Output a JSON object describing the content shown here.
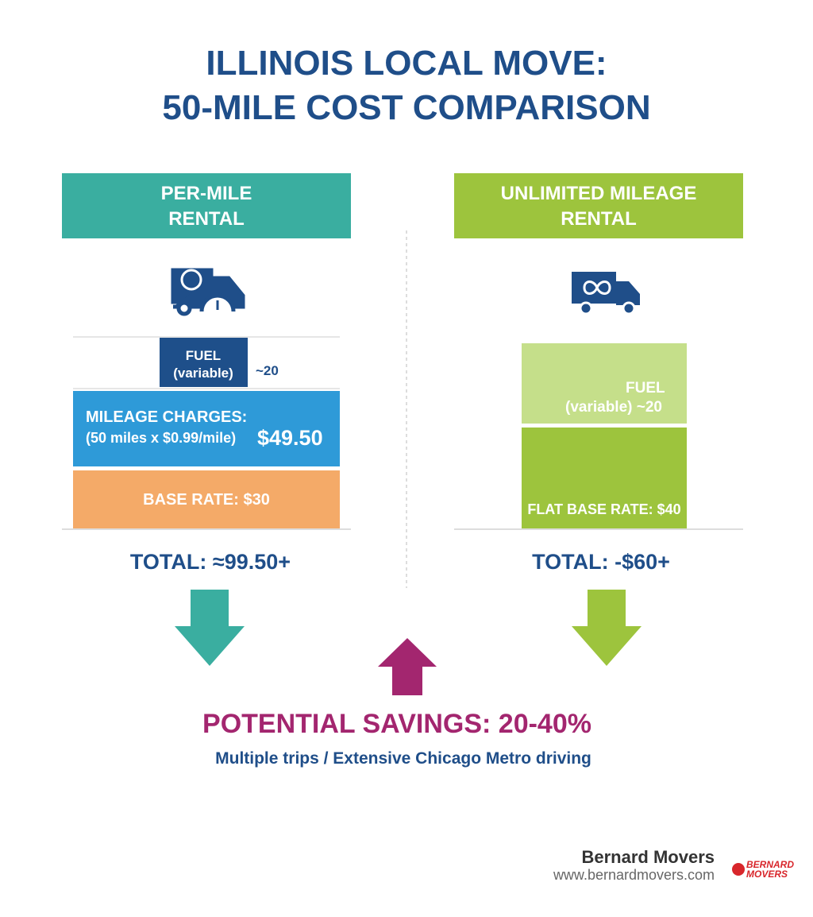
{
  "title": [
    "ILLINOIS LOCAL MOVE:",
    "50-MILE COST COMPARISON"
  ],
  "left": {
    "heading": [
      "PER-MILE",
      "RENTAL"
    ],
    "fuel": {
      "label": [
        "FUEL",
        "(variable)"
      ],
      "amount": "~20"
    },
    "mileage": {
      "label": [
        "MILEAGE CHARGES:",
        "(50 miles x $0.99/mile)"
      ],
      "amount": "$49.50"
    },
    "base": "BASE RATE: $30",
    "total": "TOTAL: ≈99.50+"
  },
  "right": {
    "heading": [
      "UNLIMITED MILEAGE",
      "RENTAL"
    ],
    "fuel": {
      "label": [
        "FUEL",
        "(variable)"
      ],
      "amount": "~20"
    },
    "base": "FLAT BASE RATE: $40",
    "total": "TOTAL: -$60+"
  },
  "savings": {
    "headline": "POTENTIAL SAVINGS: 20-40%",
    "note": "Multiple trips / Extensive Chicago Metro driving"
  },
  "footer": {
    "company": "Bernard Movers",
    "url": "www.bernardmovers.com",
    "logo": [
      "BERNARD",
      "MOVERS"
    ]
  }
}
